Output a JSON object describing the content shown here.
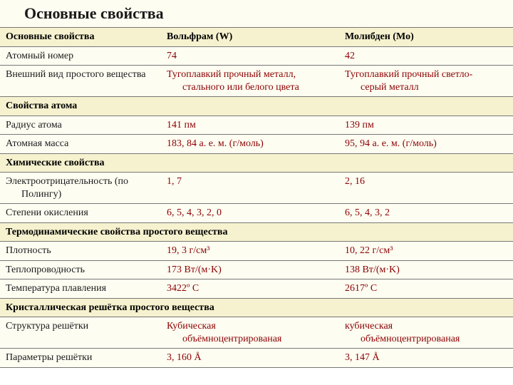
{
  "title": "Основные свойства",
  "header": {
    "prop": "Основные свойства",
    "col1": "Вольфрам (W)",
    "col2": "Молибден (Mo)"
  },
  "rows": [
    {
      "type": "data",
      "prop": "Атомный номер",
      "v1": "74",
      "v2": "42"
    },
    {
      "type": "data",
      "prop": "Внешний вид простого вещества",
      "v1_l1": "Тугоплавкий прочный металл,",
      "v1_l2": "стального или белого цвета",
      "v2_l1": "Тугоплавкий прочный светло-",
      "v2_l2": "серый металл"
    },
    {
      "type": "section",
      "label": "Свойства атома"
    },
    {
      "type": "data",
      "prop": "Радиус атома",
      "v1": "141 пм",
      "v2": "139 пм"
    },
    {
      "type": "data",
      "prop": "Атомная масса",
      "v1": "183, 84 а. е. м. (г/моль)",
      "v2": "95, 94 а. е. м. (г/моль)"
    },
    {
      "type": "section",
      "label": "Химические свойства"
    },
    {
      "type": "data",
      "prop_l1": "Электроотрицательность (по",
      "prop_l2": "Полингу)",
      "v1": "1, 7",
      "v2": "2, 16"
    },
    {
      "type": "data",
      "prop": "Степени окисления",
      "v1": "6, 5, 4, 3, 2, 0",
      "v2": "6, 5, 4, 3, 2"
    },
    {
      "type": "section",
      "label": "Термодинамические свойства простого вещества"
    },
    {
      "type": "data",
      "prop": "Плотность",
      "v1": "19, 3 г/см³",
      "v2": "10, 22 г/см³"
    },
    {
      "type": "data",
      "prop": "Теплопроводность",
      "v1": "173 Вт/(м·K)",
      "v2": "138 Вт/(м·K)"
    },
    {
      "type": "data",
      "prop": "Температура плавления",
      "v1": "3422º C",
      "v2": "2617º C"
    },
    {
      "type": "section",
      "label": "Кристаллическая решётка простого вещества"
    },
    {
      "type": "data",
      "prop": "Структура решётки",
      "v1_l1": "Кубическая",
      "v1_l2": "объёмноцентрированая",
      "v2_l1": "кубическая",
      "v2_l2": "объёмноцентрированая"
    },
    {
      "type": "data",
      "prop": "Параметры решётки",
      "v1": "3, 160 Å",
      "v2": "3, 147 Å"
    }
  ]
}
